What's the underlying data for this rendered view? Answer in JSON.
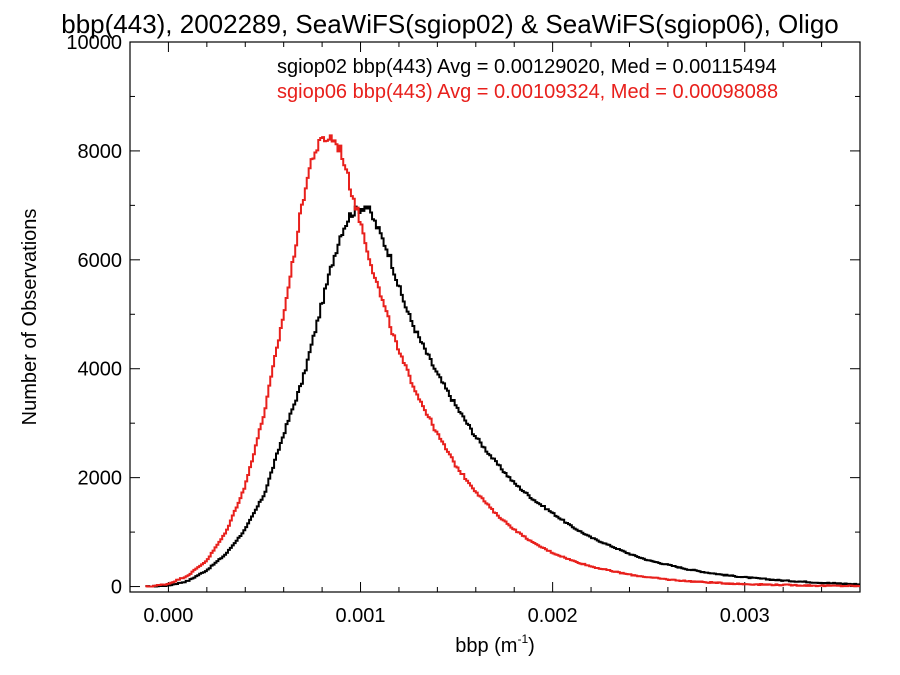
{
  "chart_data": {
    "type": "line",
    "title": "bbp(443), 2002289, SeaWiFS(sgiop02) & SeaWiFS(sgiop06), Oligo",
    "xlabel": "bbp (m",
    "xlabel_superscript": "-1",
    "xlabel_suffix": ")",
    "ylabel": "Number of Observations",
    "xlim": [
      -0.0002,
      0.0036
    ],
    "ylim": [
      -100,
      10000
    ],
    "x_ticks": [
      0.0,
      0.001,
      0.002,
      0.003
    ],
    "x_tick_labels": [
      "0.000",
      "0.001",
      "0.002",
      "0.003"
    ],
    "y_ticks": [
      0,
      2000,
      4000,
      6000,
      8000,
      10000
    ],
    "y_tick_labels": [
      "0",
      "2000",
      "4000",
      "6000",
      "8000",
      "10000"
    ],
    "grid": false,
    "legend_position": "top-right",
    "series": [
      {
        "name": "sgiop02",
        "color": "#000000",
        "legend": "sgiop02 bbp(443) Avg = 0.00129020, Med = 0.00115494",
        "x": [
          -0.0001,
          0.0,
          0.0001,
          0.0002,
          0.0003,
          0.0004,
          0.0005,
          0.0006,
          0.0007,
          0.00075,
          0.0008,
          0.00085,
          0.0009,
          0.00095,
          0.001,
          0.00103,
          0.00106,
          0.0011,
          0.00115,
          0.0012,
          0.00125,
          0.0013,
          0.0014,
          0.0015,
          0.0016,
          0.0017,
          0.0018,
          0.0019,
          0.002,
          0.0021,
          0.0022,
          0.0023,
          0.0024,
          0.0025,
          0.0026,
          0.0027,
          0.0028,
          0.0029,
          0.003,
          0.0032,
          0.0034,
          0.0036
        ],
        "y": [
          0,
          20,
          100,
          300,
          600,
          1050,
          1700,
          2800,
          3800,
          4500,
          5200,
          5900,
          6500,
          6850,
          6950,
          7000,
          6800,
          6500,
          6100,
          5500,
          5000,
          4600,
          3900,
          3300,
          2750,
          2300,
          1900,
          1600,
          1350,
          1100,
          900,
          750,
          600,
          480,
          400,
          320,
          260,
          210,
          170,
          110,
          70,
          40
        ]
      },
      {
        "name": "sgiop06",
        "color": "#e8201c",
        "legend": "sgiop06 bbp(443) Avg = 0.00109324, Med = 0.00098088",
        "x": [
          -0.0001,
          0.0,
          0.0001,
          0.0002,
          0.0003,
          0.0004,
          0.0005,
          0.0006,
          0.00065,
          0.0007,
          0.00075,
          0.0008,
          0.00085,
          0.0009,
          0.00095,
          0.001,
          0.00105,
          0.0011,
          0.00115,
          0.0012,
          0.0013,
          0.0014,
          0.0015,
          0.0016,
          0.0017,
          0.0018,
          0.0019,
          0.002,
          0.0021,
          0.0022,
          0.0023,
          0.0024,
          0.0025,
          0.0026,
          0.0027,
          0.0028,
          0.0029,
          0.003,
          0.0032,
          0.0034,
          0.0036
        ],
        "y": [
          0,
          50,
          200,
          480,
          1000,
          1850,
          3200,
          5000,
          6000,
          7100,
          7900,
          8200,
          8250,
          8000,
          7300,
          6700,
          6000,
          5400,
          4850,
          4300,
          3500,
          2800,
          2200,
          1750,
          1350,
          1050,
          800,
          620,
          480,
          370,
          290,
          220,
          170,
          130,
          100,
          80,
          60,
          45,
          30,
          15,
          10
        ]
      }
    ]
  }
}
